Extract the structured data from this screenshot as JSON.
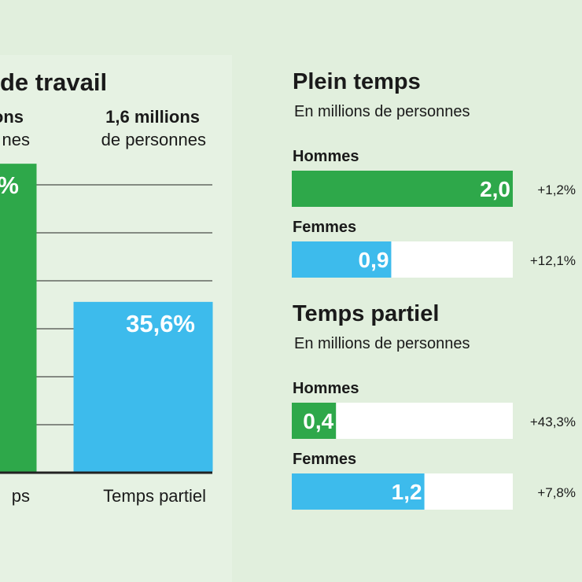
{
  "chart_data": [
    {
      "type": "bar",
      "title": "de travail",
      "headers": [
        {
          "line1": "ons",
          "line2": "nes"
        },
        {
          "line1": "1,6 millions",
          "line2": "de personnes"
        }
      ],
      "categories": [
        "ps",
        "Temps partiel"
      ],
      "values": [
        64.4,
        35.6
      ],
      "value_labels": [
        "%",
        "35,6%"
      ],
      "colors": [
        "#2ea84a",
        "#3dbbec"
      ],
      "ylim": [
        0,
        70
      ],
      "yticks": [
        0,
        10,
        20,
        30,
        40,
        50,
        60
      ],
      "grid": true
    },
    {
      "type": "hbar",
      "title": "Plein temps",
      "subtitle": "En millions de personnes",
      "categories": [
        "Hommes",
        "Femmes"
      ],
      "values": [
        2.0,
        0.9
      ],
      "value_labels": [
        "2,0",
        "0,9"
      ],
      "changes": [
        "+1,2%",
        "+12,1%"
      ],
      "colors": [
        "#2ea84a",
        "#3dbbec"
      ],
      "xlim": [
        0,
        2
      ]
    },
    {
      "type": "hbar",
      "title": "Temps partiel",
      "subtitle": "En millions de personnes",
      "categories": [
        "Hommes",
        "Femmes"
      ],
      "values": [
        0.4,
        1.2
      ],
      "value_labels": [
        "0,4",
        "1,2"
      ],
      "changes": [
        "+43,3%",
        "+7,8%"
      ],
      "colors": [
        "#2ea84a",
        "#3dbbec"
      ],
      "xlim": [
        0,
        2
      ]
    }
  ]
}
